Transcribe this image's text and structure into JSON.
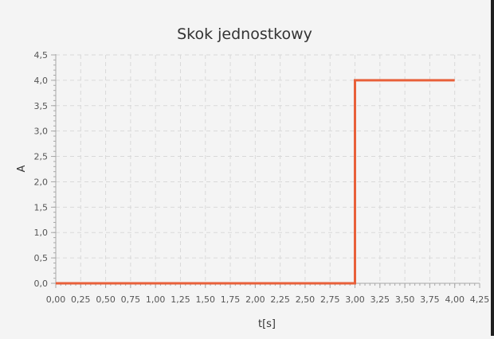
{
  "chart_data": {
    "type": "line",
    "title": "Skok jednostkowy",
    "xlabel": "t[s]",
    "ylabel": "A",
    "xlim": [
      0,
      4.25
    ],
    "ylim": [
      0,
      4.5
    ],
    "x_ticks": [
      0,
      0.25,
      0.5,
      0.75,
      1.0,
      1.25,
      1.5,
      1.75,
      2.0,
      2.25,
      2.5,
      2.75,
      3.0,
      3.25,
      3.5,
      3.75,
      4.0,
      4.25
    ],
    "x_tick_labels": [
      "0,00",
      "0,25",
      "0,50",
      "0,75",
      "1,00",
      "1,25",
      "1,50",
      "1,75",
      "2,00",
      "2,25",
      "2,50",
      "2,75",
      "3,00",
      "3,25",
      "3,50",
      "3,75",
      "4,00",
      "4,25"
    ],
    "y_ticks": [
      0,
      0.5,
      1.0,
      1.5,
      2.0,
      2.5,
      3.0,
      3.5,
      4.0,
      4.5
    ],
    "y_tick_labels": [
      "0,0",
      "0,5",
      "1,0",
      "1,5",
      "2,0",
      "2,5",
      "3,0",
      "3,5",
      "4,0",
      "4,5"
    ],
    "grid": true,
    "series": [
      {
        "color": "#e8603a",
        "x": [
          0,
          3.0,
          3.0,
          4.0
        ],
        "y": [
          0,
          0,
          4.0,
          4.0
        ]
      }
    ]
  }
}
